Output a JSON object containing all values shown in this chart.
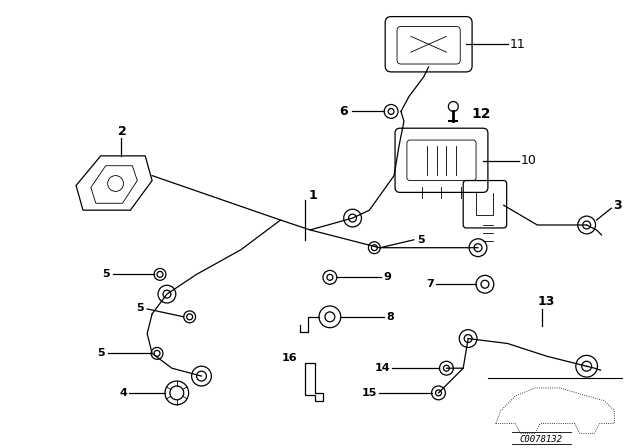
{
  "background_color": "#ffffff",
  "fig_width": 6.4,
  "fig_height": 4.48,
  "dpi": 100,
  "code_text": "C0078132",
  "line_color": "#000000",
  "label_fontsize": 8,
  "bold_labels": [
    "12",
    "13"
  ],
  "parts_lw": 0.9
}
